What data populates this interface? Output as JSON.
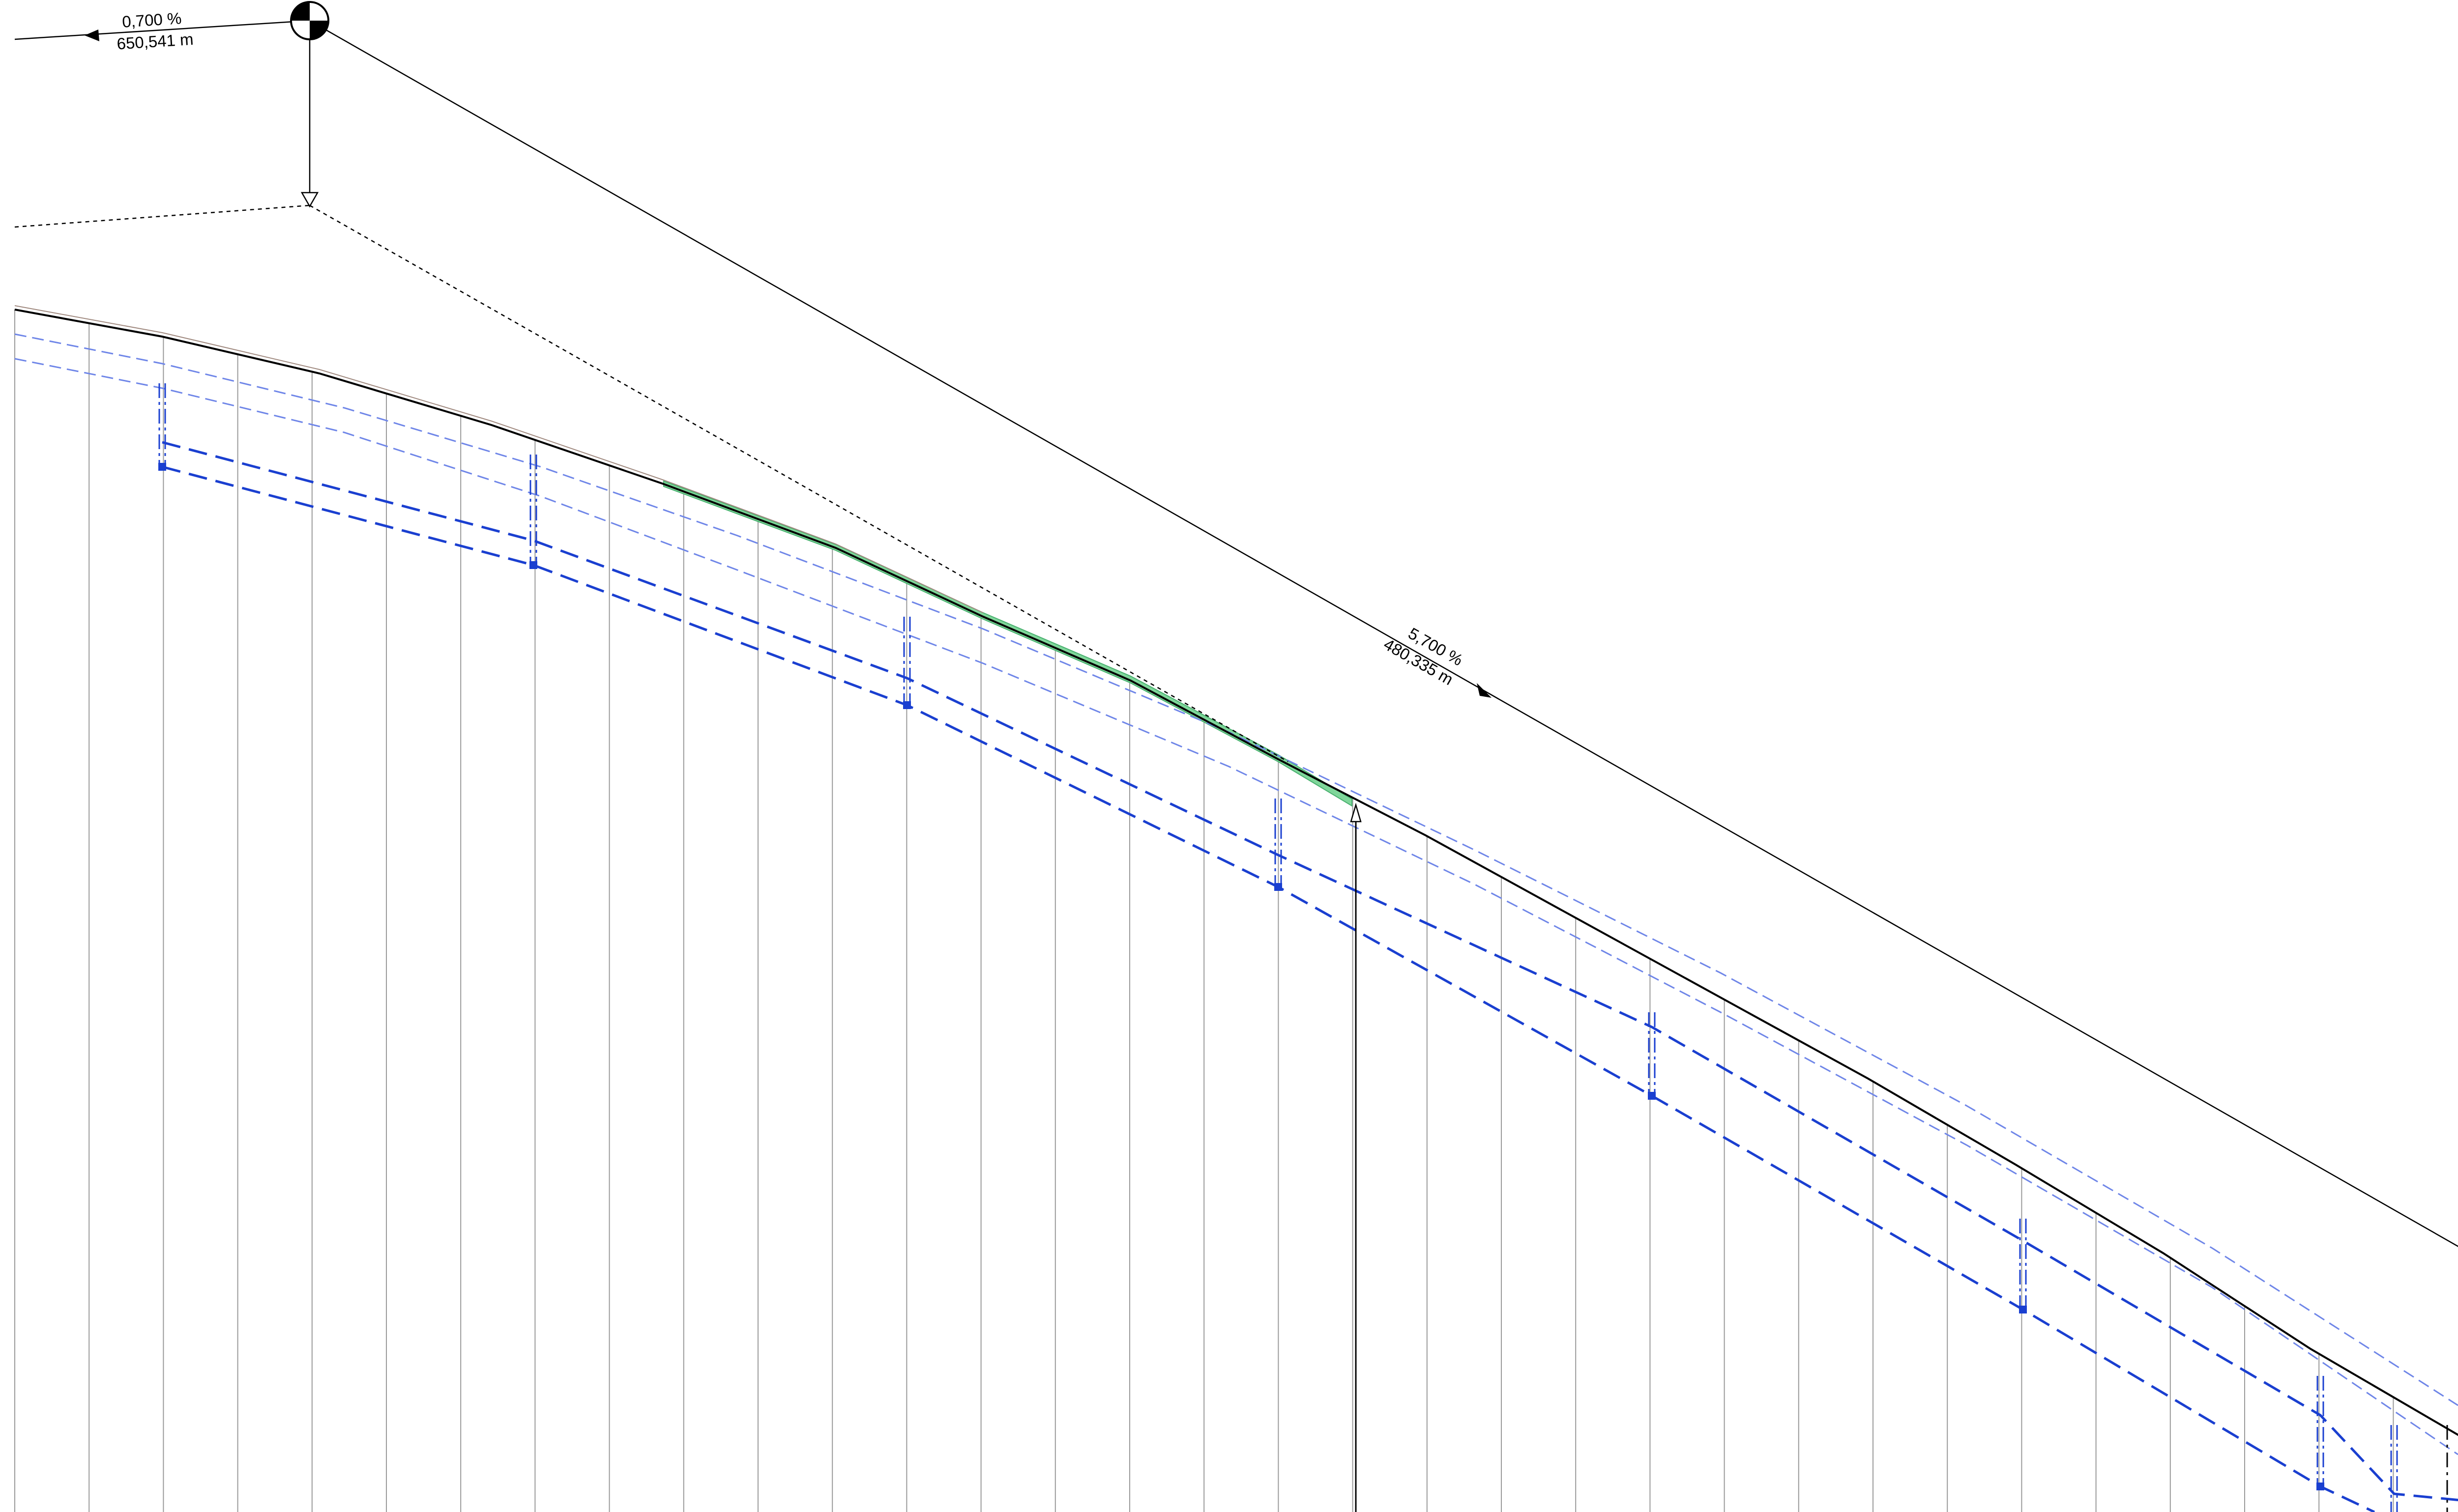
{
  "grade_labels": {
    "left_grade": "0,700 %",
    "left_length": "650,541 m",
    "right_grade": "5,700 %",
    "right_length": "480,335 m"
  },
  "colors": {
    "background": "#ffffff",
    "line": "#000000",
    "grid": "#9a9a9a",
    "pipe": "#1a3fd0",
    "pipe_light": "#6f86e8",
    "fill": "#7fd69a"
  },
  "icons": {
    "vertex_marker": "pvi-circle-quadrant-icon",
    "vertex_drop_arrow": "triangle-down-icon",
    "station_marker": "arrow-up-icon"
  }
}
